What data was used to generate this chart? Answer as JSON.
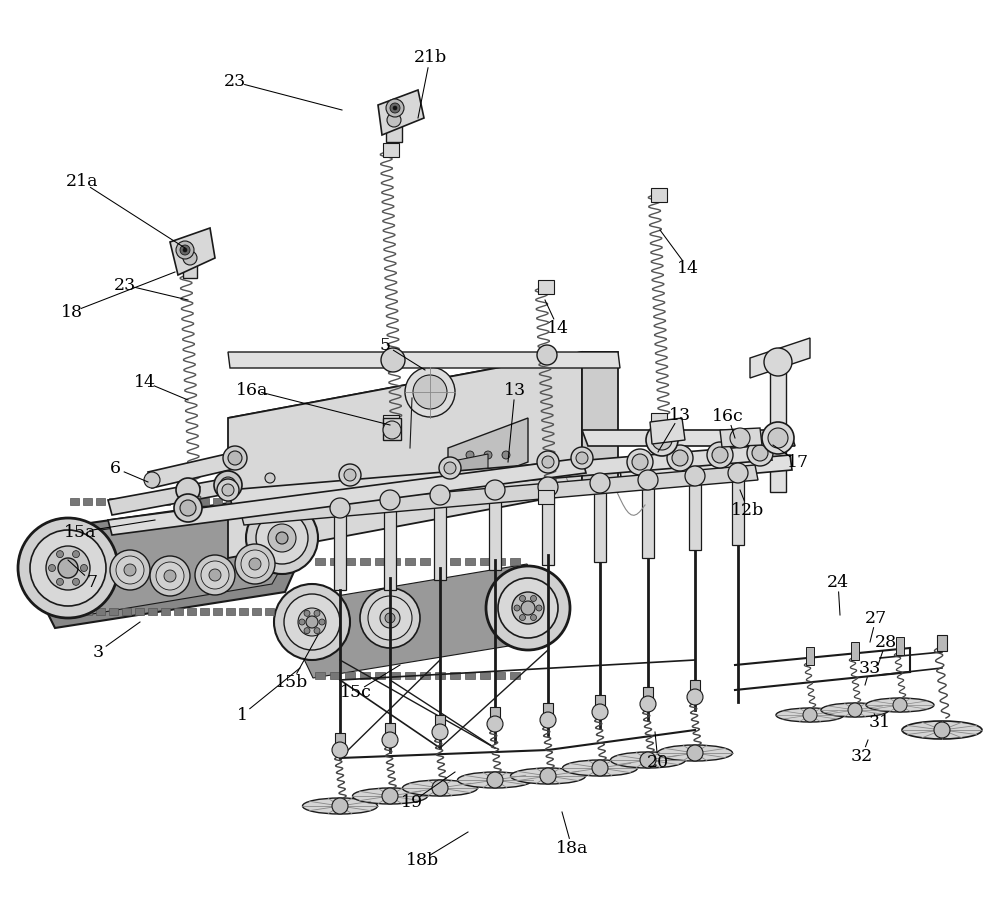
{
  "bg_color": "#ffffff",
  "lc": "#1a1a1a",
  "fig_w": 10.0,
  "fig_h": 9.22,
  "annotations": [
    [
      "21a",
      82,
      182,
      175,
      260
    ],
    [
      "18",
      75,
      310,
      178,
      278
    ],
    [
      "23",
      128,
      287,
      182,
      297
    ],
    [
      "14",
      148,
      380,
      185,
      398
    ],
    [
      "6",
      118,
      468,
      178,
      478
    ],
    [
      "15a",
      82,
      532,
      148,
      520
    ],
    [
      "7",
      95,
      580,
      95,
      590
    ],
    [
      "3",
      100,
      655,
      138,
      625
    ],
    [
      "1",
      245,
      715,
      290,
      668
    ],
    [
      "15b",
      295,
      680,
      350,
      650
    ],
    [
      "15c",
      358,
      692,
      390,
      665
    ],
    [
      "19",
      412,
      800,
      450,
      772
    ],
    [
      "18b",
      422,
      862,
      470,
      832
    ],
    [
      "18a",
      572,
      848,
      565,
      818
    ],
    [
      "16a",
      255,
      388,
      318,
      418
    ],
    [
      "5",
      388,
      345,
      420,
      368
    ],
    [
      "13",
      518,
      388,
      508,
      440
    ],
    [
      "14",
      560,
      328,
      548,
      298
    ],
    [
      "14",
      690,
      268,
      658,
      228
    ],
    [
      "13",
      682,
      415,
      660,
      450
    ],
    [
      "16c",
      730,
      418,
      700,
      442
    ],
    [
      "17",
      800,
      462,
      770,
      468
    ],
    [
      "12b",
      750,
      512,
      738,
      488
    ],
    [
      "20",
      660,
      762,
      658,
      728
    ],
    [
      "24",
      840,
      582,
      838,
      608
    ],
    [
      "27",
      878,
      618,
      875,
      640
    ],
    [
      "28",
      888,
      642,
      882,
      662
    ],
    [
      "33",
      872,
      668,
      868,
      682
    ],
    [
      "31",
      882,
      722,
      878,
      712
    ],
    [
      "32",
      865,
      755,
      870,
      740
    ],
    [
      "21b",
      432,
      60,
      418,
      118
    ],
    [
      "23",
      235,
      82,
      340,
      108
    ]
  ]
}
